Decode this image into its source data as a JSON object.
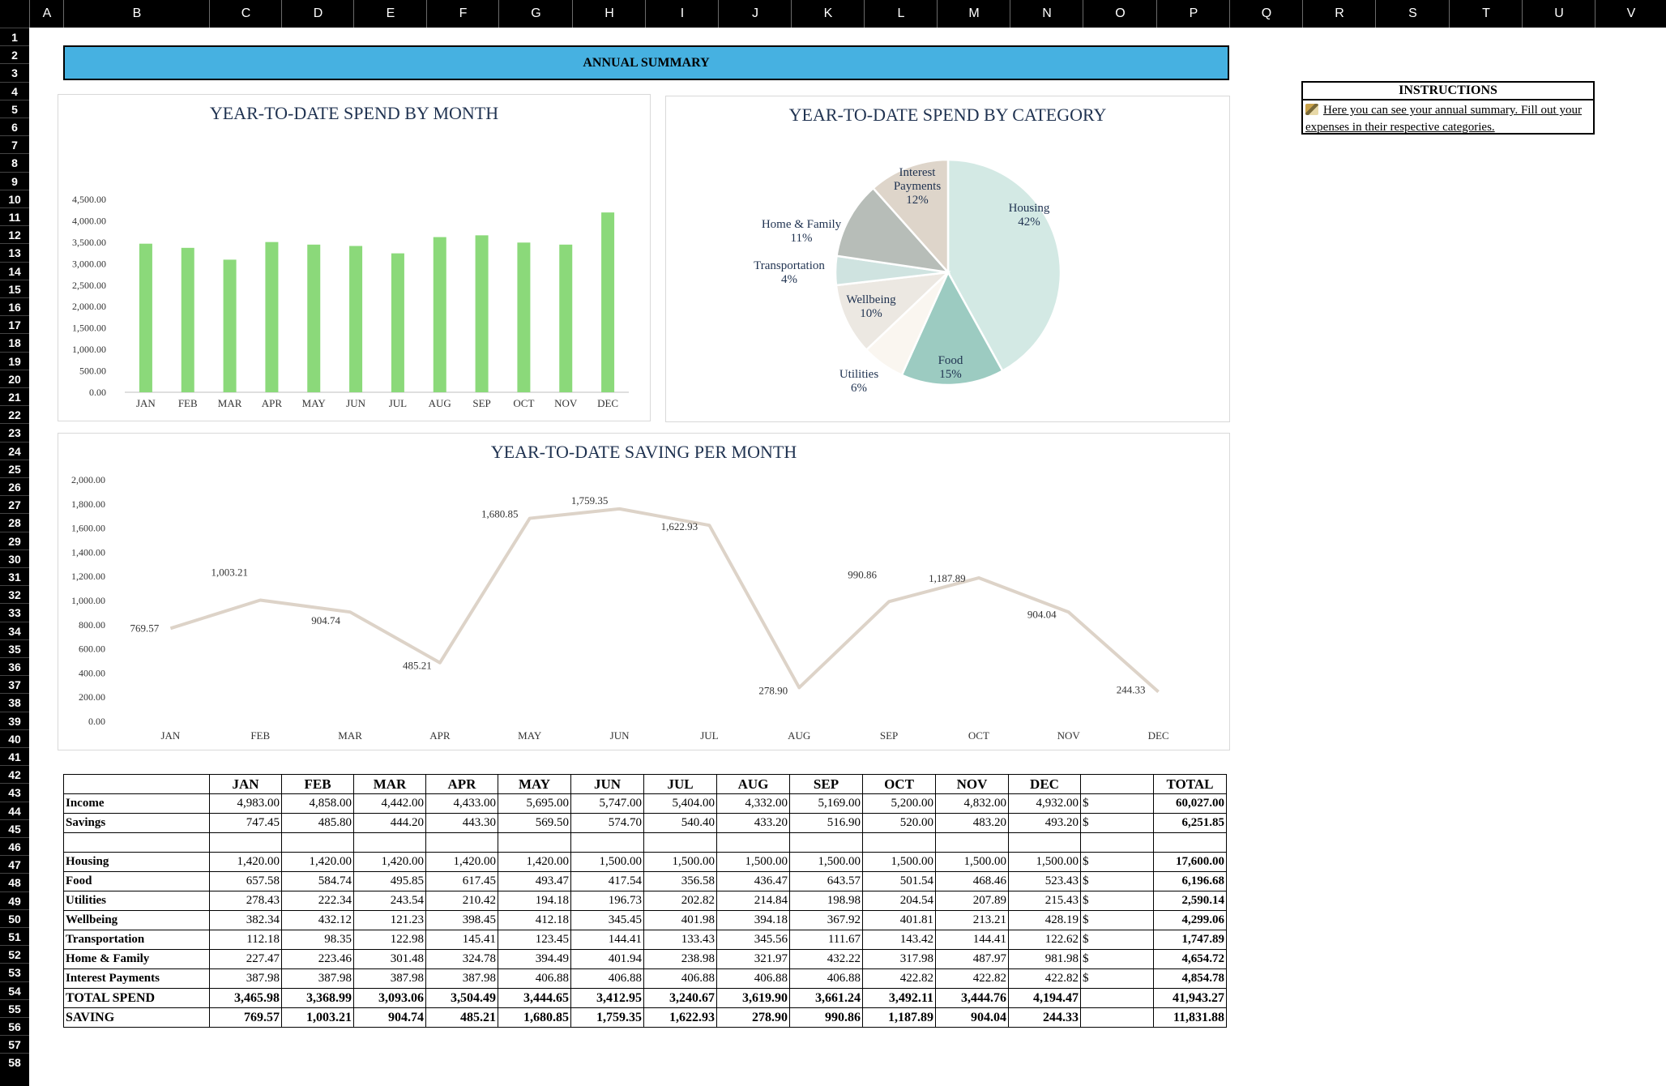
{
  "columns": [
    "A",
    "B",
    "C",
    "D",
    "E",
    "F",
    "G",
    "H",
    "I",
    "J",
    "K",
    "L",
    "M",
    "N",
    "O",
    "P",
    "Q",
    "R",
    "S",
    "T",
    "U",
    "V"
  ],
  "rows": [
    "1",
    "2",
    "3",
    "4",
    "5",
    "6",
    "7",
    "8",
    "9",
    "10",
    "11",
    "12",
    "13",
    "14",
    "15",
    "16",
    "17",
    "18",
    "19",
    "20",
    "21",
    "22",
    "23",
    "24",
    "25",
    "26",
    "27",
    "28",
    "29",
    "30",
    "31",
    "32",
    "33",
    "34",
    "35",
    "36",
    "37",
    "38",
    "39",
    "40",
    "41",
    "42",
    "43",
    "44",
    "45",
    "46",
    "47",
    "48",
    "49",
    "50",
    "51",
    "52",
    "53",
    "54",
    "55",
    "56",
    "57",
    "58"
  ],
  "banner": {
    "title": "ANNUAL SUMMARY"
  },
  "instructions": {
    "heading": "INSTRUCTIONS",
    "text": "Here you can see your annual summary. Fill out your expenses in their respective categories."
  },
  "chart_data": [
    {
      "type": "bar",
      "title": "YEAR-TO-DATE SPEND BY MONTH",
      "categories": [
        "JAN",
        "FEB",
        "MAR",
        "APR",
        "MAY",
        "JUN",
        "JUL",
        "AUG",
        "SEP",
        "OCT",
        "NOV",
        "DEC"
      ],
      "values": [
        3465.98,
        3368.99,
        3093.06,
        3504.49,
        3444.65,
        3412.95,
        3240.67,
        3619.9,
        3661.24,
        3492.11,
        3444.76,
        4194.47
      ],
      "yticks": [
        "0.00",
        "500.00",
        "1,000.00",
        "1,500.00",
        "2,000.00",
        "2,500.00",
        "3,000.00",
        "3,500.00",
        "4,000.00",
        "4,500.00"
      ],
      "ylim": [
        0,
        4500
      ],
      "color": "#8bd97a",
      "grid": false
    },
    {
      "type": "pie",
      "title": "YEAR-TO-DATE SPEND BY CATEGORY",
      "slices": [
        {
          "label": "Housing",
          "pct": "42%",
          "value": 17600.0,
          "color": "#d3e9e4"
        },
        {
          "label": "Food",
          "pct": "15%",
          "value": 6196.68,
          "color": "#9ccbc1"
        },
        {
          "label": "Utilities",
          "pct": "6%",
          "value": 2590.14,
          "color": "#faf6f0"
        },
        {
          "label": "Wellbeing",
          "pct": "10%",
          "value": 4299.06,
          "color": "#ece8e2"
        },
        {
          "label": "Transportation",
          "pct": "4%",
          "value": 1747.89,
          "color": "#cfe3e0"
        },
        {
          "label": "Home & Family",
          "pct": "11%",
          "value": 4654.72,
          "color": "#b7bdb8"
        },
        {
          "label": "Interest Payments",
          "pct": "12%",
          "value": 4854.78,
          "color": "#ded5ca"
        }
      ]
    },
    {
      "type": "line",
      "title": "YEAR-TO-DATE SAVING PER MONTH",
      "categories": [
        "JAN",
        "FEB",
        "MAR",
        "APR",
        "MAY",
        "JUN",
        "JUL",
        "AUG",
        "SEP",
        "OCT",
        "NOV",
        "DEC"
      ],
      "values": [
        769.57,
        1003.21,
        904.74,
        485.21,
        1680.85,
        1759.35,
        1622.93,
        278.9,
        990.86,
        1187.89,
        904.04,
        244.33
      ],
      "labels": [
        "769.57",
        "1,003.21",
        "904.74",
        "485.21",
        "1,680.85",
        "1,759.35",
        "1,622.93",
        "278.90",
        "990.86",
        "1,187.89",
        "904.04",
        "244.33"
      ],
      "yticks": [
        "0.00",
        "200.00",
        "400.00",
        "600.00",
        "800.00",
        "1,000.00",
        "1,200.00",
        "1,400.00",
        "1,600.00",
        "1,800.00",
        "2,000.00"
      ],
      "ylim": [
        0,
        2000
      ],
      "color": "#ddd3c8",
      "grid": false
    }
  ],
  "table": {
    "months": [
      "JAN",
      "FEB",
      "MAR",
      "APR",
      "MAY",
      "JUN",
      "JUL",
      "AUG",
      "SEP",
      "OCT",
      "NOV",
      "DEC"
    ],
    "total_header": "TOTAL",
    "currency": "$",
    "rows": [
      {
        "label": "Income",
        "values": [
          "4,983.00",
          "4,858.00",
          "4,442.00",
          "4,433.00",
          "5,695.00",
          "5,747.00",
          "5,404.00",
          "4,332.00",
          "5,169.00",
          "5,200.00",
          "4,832.00",
          "4,932.00"
        ],
        "total": "60,027.00",
        "cur": true
      },
      {
        "label": "Savings",
        "values": [
          "747.45",
          "485.80",
          "444.20",
          "443.30",
          "569.50",
          "574.70",
          "540.40",
          "433.20",
          "516.90",
          "520.00",
          "483.20",
          "493.20"
        ],
        "total": "6,251.85",
        "cur": true
      },
      {
        "label": "",
        "values": [
          "",
          "",
          "",
          "",
          "",
          "",
          "",
          "",
          "",
          "",
          "",
          ""
        ],
        "total": "",
        "blank": true
      },
      {
        "label": "Housing",
        "values": [
          "1,420.00",
          "1,420.00",
          "1,420.00",
          "1,420.00",
          "1,420.00",
          "1,500.00",
          "1,500.00",
          "1,500.00",
          "1,500.00",
          "1,500.00",
          "1,500.00",
          "1,500.00"
        ],
        "total": "17,600.00",
        "cur": true
      },
      {
        "label": "Food",
        "values": [
          "657.58",
          "584.74",
          "495.85",
          "617.45",
          "493.47",
          "417.54",
          "356.58",
          "436.47",
          "643.57",
          "501.54",
          "468.46",
          "523.43"
        ],
        "total": "6,196.68",
        "cur": true
      },
      {
        "label": "Utilities",
        "values": [
          "278.43",
          "222.34",
          "243.54",
          "210.42",
          "194.18",
          "196.73",
          "202.82",
          "214.84",
          "198.98",
          "204.54",
          "207.89",
          "215.43"
        ],
        "total": "2,590.14",
        "cur": true
      },
      {
        "label": "Wellbeing",
        "values": [
          "382.34",
          "432.12",
          "121.23",
          "398.45",
          "412.18",
          "345.45",
          "401.98",
          "394.18",
          "367.92",
          "401.81",
          "213.21",
          "428.19"
        ],
        "total": "4,299.06",
        "cur": true
      },
      {
        "label": "Transportation",
        "values": [
          "112.18",
          "98.35",
          "122.98",
          "145.41",
          "123.45",
          "144.41",
          "133.43",
          "345.56",
          "111.67",
          "143.42",
          "144.41",
          "122.62"
        ],
        "total": "1,747.89",
        "cur": true
      },
      {
        "label": "Home & Family",
        "values": [
          "227.47",
          "223.46",
          "301.48",
          "324.78",
          "394.49",
          "401.94",
          "238.98",
          "321.97",
          "432.22",
          "317.98",
          "487.97",
          "981.98"
        ],
        "total": "4,654.72",
        "cur": true
      },
      {
        "label": "Interest Payments",
        "values": [
          "387.98",
          "387.98",
          "387.98",
          "387.98",
          "406.88",
          "406.88",
          "406.88",
          "406.88",
          "406.88",
          "422.82",
          "422.82",
          "422.82"
        ],
        "total": "4,854.78",
        "cur": true
      },
      {
        "label": "TOTAL SPEND",
        "values": [
          "3,465.98",
          "3,368.99",
          "3,093.06",
          "3,504.49",
          "3,444.65",
          "3,412.95",
          "3,240.67",
          "3,619.90",
          "3,661.24",
          "3,492.11",
          "3,444.76",
          "4,194.47"
        ],
        "total": "41,943.27",
        "bold": true
      },
      {
        "label": "SAVING",
        "values": [
          "769.57",
          "1,003.21",
          "904.74",
          "485.21",
          "1,680.85",
          "1,759.35",
          "1,622.93",
          "278.90",
          "990.86",
          "1,187.89",
          "904.04",
          "244.33"
        ],
        "total": "11,831.88",
        "bold": true
      }
    ]
  }
}
